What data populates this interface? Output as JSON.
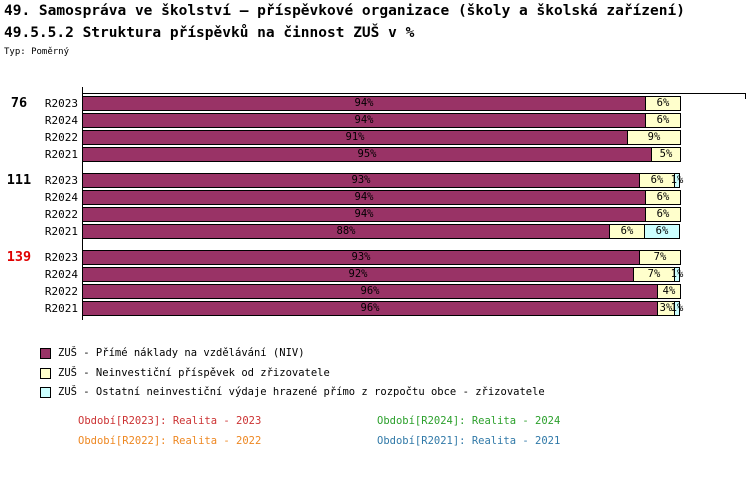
{
  "header": {
    "title_line1": "49. Samospráva ve školství – příspěvkové organizace (školy a školská zařízení)",
    "title_line2": "49.5.5.2 Struktura příspěvků na činnost ZUŠ v %",
    "type_label": "Typ: Poměrný"
  },
  "chart_data": {
    "type": "bar",
    "orientation": "horizontal",
    "stacked": true,
    "unit": "%",
    "axis": {
      "min": 0,
      "max": 100
    },
    "value_label_format": "{value}%",
    "legend_position": "bottom-left",
    "series": [
      {
        "name": "ZUŠ - Přímé náklady na vzdělávání (NIV)",
        "color": "#993366"
      },
      {
        "name": "ZUŠ - Neinvestiční příspěvek od zřizovatele",
        "color": "#FFFFCC"
      },
      {
        "name": "ZUŠ - Ostatní neinvestiční výdaje hrazené přímo z rozpočtu obce - zřizovatele",
        "color": "#CCFFFF"
      }
    ],
    "groups": [
      {
        "label": "76",
        "label_color": "#000000",
        "rows": [
          {
            "period": "R2023",
            "values": [
              94,
              6,
              0
            ]
          },
          {
            "period": "R2024",
            "values": [
              94,
              6,
              0
            ]
          },
          {
            "period": "R2022",
            "values": [
              91,
              9,
              0
            ]
          },
          {
            "period": "R2021",
            "values": [
              95,
              5,
              0
            ]
          }
        ]
      },
      {
        "label": "111",
        "label_color": "#000000",
        "rows": [
          {
            "period": "R2023",
            "values": [
              93,
              6,
              1
            ]
          },
          {
            "period": "R2024",
            "values": [
              94,
              6,
              0
            ]
          },
          {
            "period": "R2022",
            "values": [
              94,
              6,
              0
            ]
          },
          {
            "period": "R2021",
            "values": [
              88,
              6,
              6
            ]
          }
        ]
      },
      {
        "label": "139",
        "label_color": "#E00000",
        "rows": [
          {
            "period": "R2023",
            "values": [
              93,
              7,
              0
            ]
          },
          {
            "period": "R2024",
            "values": [
              92,
              7,
              1
            ]
          },
          {
            "period": "R2022",
            "values": [
              96,
              4,
              0
            ]
          },
          {
            "period": "R2021",
            "values": [
              96,
              3,
              1
            ]
          }
        ]
      }
    ]
  },
  "footnotes": {
    "items": [
      {
        "text": "Období[R2023]: Realita - 2023",
        "color": "#CC3333"
      },
      {
        "text": "Období[R2024]: Realita - 2024",
        "color": "#2CA02C"
      },
      {
        "text": "Období[R2022]: Realita - 2022",
        "color": "#EE8822"
      },
      {
        "text": "Období[R2021]: Realita - 2021",
        "color": "#3179A8"
      }
    ]
  }
}
